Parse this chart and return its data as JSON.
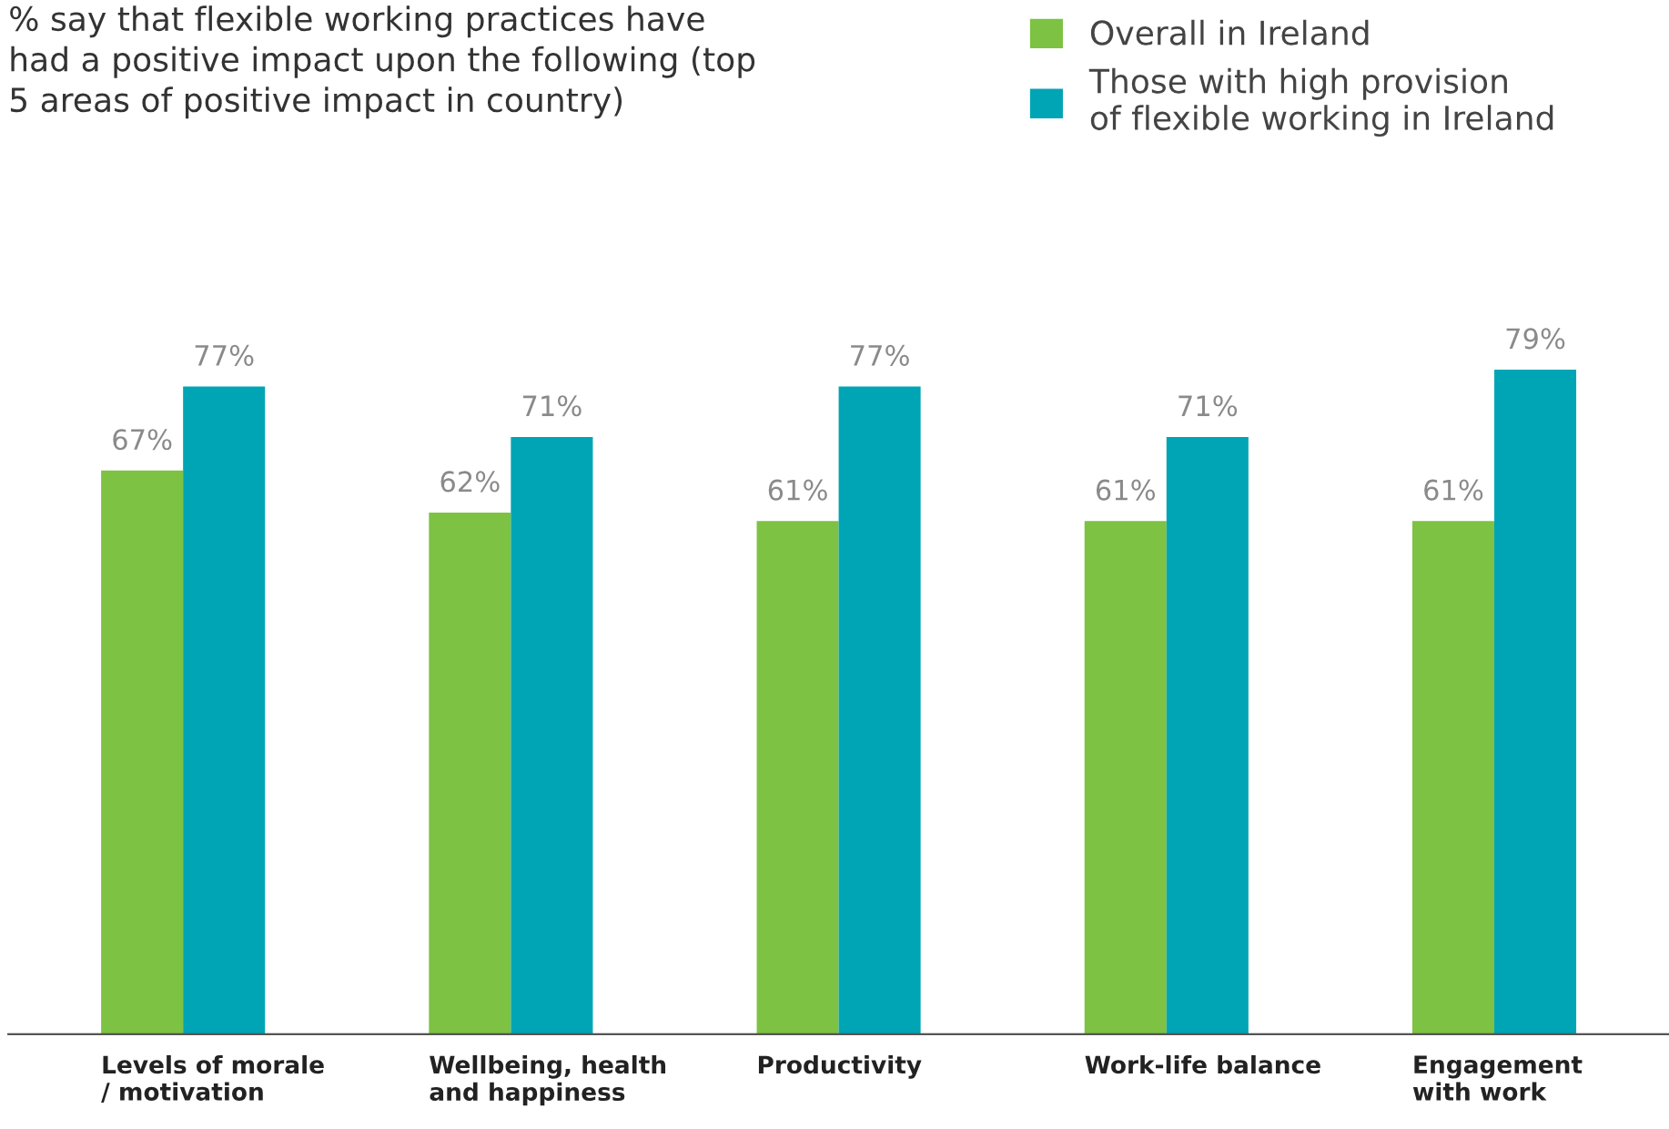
{
  "chart_data": {
    "type": "bar",
    "title": "% say that flexible working practices have\nhad a positive impact upon the following (top\n5 areas of positive impact in country)",
    "categories": [
      "Levels of morale\n/ motivation",
      "Wellbeing, health\nand happiness",
      "Productivity",
      "Work-life balance",
      "Engagement\nwith work"
    ],
    "series": [
      {
        "name": "Overall in Ireland",
        "color": "#7dc243",
        "values": [
          67,
          62,
          61,
          61,
          61
        ],
        "value_labels": [
          "67%",
          "62%",
          "61%",
          "61%",
          "61%"
        ]
      },
      {
        "name": "Those with high provision\nof flexible working in Ireland",
        "color": "#00a5b5",
        "values": [
          77,
          71,
          77,
          71,
          79
        ],
        "value_labels": [
          "77%",
          "71%",
          "77%",
          "71%",
          "79%"
        ]
      }
    ],
    "legend": "top right"
  }
}
